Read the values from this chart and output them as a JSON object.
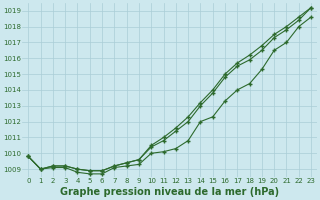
{
  "xlabel": "Graphe pression niveau de la mer (hPa)",
  "ylim": [
    1008.5,
    1019.5
  ],
  "xlim": [
    -0.5,
    23.5
  ],
  "yticks": [
    1009,
    1010,
    1011,
    1012,
    1013,
    1014,
    1015,
    1016,
    1017,
    1018,
    1019
  ],
  "xticks": [
    0,
    1,
    2,
    3,
    4,
    5,
    6,
    7,
    8,
    9,
    10,
    11,
    12,
    13,
    14,
    15,
    16,
    17,
    18,
    19,
    20,
    21,
    22,
    23
  ],
  "bg_color": "#cde8ee",
  "grid_color": "#aacdd6",
  "line_color": "#2d6a2d",
  "series1_y": [
    1009.8,
    1009.0,
    1009.1,
    1009.1,
    1008.8,
    1008.7,
    1008.7,
    1009.1,
    1009.2,
    1009.3,
    1010.0,
    1010.1,
    1010.3,
    1010.8,
    1012.0,
    1012.3,
    1013.3,
    1014.0,
    1014.4,
    1015.3,
    1016.5,
    1017.0,
    1018.0,
    1018.6
  ],
  "series2_y": [
    1009.8,
    1009.0,
    1009.2,
    1009.2,
    1009.0,
    1008.9,
    1008.9,
    1009.2,
    1009.4,
    1009.6,
    1010.4,
    1010.8,
    1011.4,
    1012.0,
    1013.0,
    1013.8,
    1014.8,
    1015.5,
    1015.9,
    1016.5,
    1017.3,
    1017.8,
    1018.4,
    1019.2
  ],
  "series3_y": [
    1009.8,
    1009.0,
    1009.2,
    1009.2,
    1009.0,
    1008.9,
    1008.9,
    1009.2,
    1009.4,
    1009.6,
    1010.5,
    1011.0,
    1011.6,
    1012.3,
    1013.2,
    1014.0,
    1015.0,
    1015.7,
    1016.2,
    1016.8,
    1017.5,
    1018.0,
    1018.6,
    1019.2
  ],
  "marker": "+",
  "markersize": 3,
  "linewidth": 0.8,
  "xlabel_fontsize": 7,
  "tick_fontsize": 5
}
